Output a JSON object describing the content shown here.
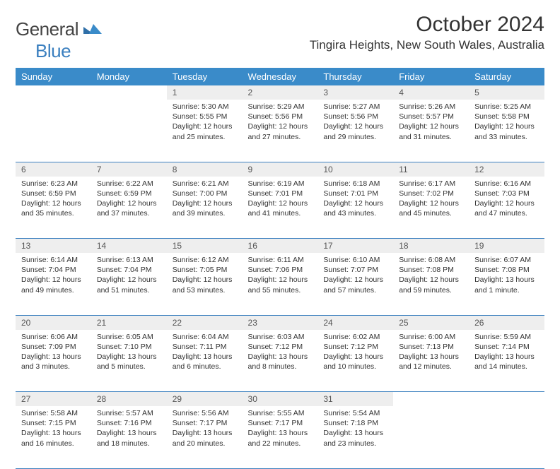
{
  "brand": {
    "part1": "General",
    "part2": "Blue"
  },
  "title": "October 2024",
  "location": "Tingira Heights, New South Wales, Australia",
  "colors": {
    "header_bg": "#3a8bc9",
    "header_fg": "#ffffff",
    "rule": "#3a7fbf",
    "daynum_bg": "#eeeeee"
  },
  "day_headers": [
    "Sunday",
    "Monday",
    "Tuesday",
    "Wednesday",
    "Thursday",
    "Friday",
    "Saturday"
  ],
  "weeks": [
    [
      {
        "n": "",
        "sr": "",
        "ss": "",
        "dl": ""
      },
      {
        "n": "",
        "sr": "",
        "ss": "",
        "dl": ""
      },
      {
        "n": "1",
        "sr": "Sunrise: 5:30 AM",
        "ss": "Sunset: 5:55 PM",
        "dl": "Daylight: 12 hours and 25 minutes."
      },
      {
        "n": "2",
        "sr": "Sunrise: 5:29 AM",
        "ss": "Sunset: 5:56 PM",
        "dl": "Daylight: 12 hours and 27 minutes."
      },
      {
        "n": "3",
        "sr": "Sunrise: 5:27 AM",
        "ss": "Sunset: 5:56 PM",
        "dl": "Daylight: 12 hours and 29 minutes."
      },
      {
        "n": "4",
        "sr": "Sunrise: 5:26 AM",
        "ss": "Sunset: 5:57 PM",
        "dl": "Daylight: 12 hours and 31 minutes."
      },
      {
        "n": "5",
        "sr": "Sunrise: 5:25 AM",
        "ss": "Sunset: 5:58 PM",
        "dl": "Daylight: 12 hours and 33 minutes."
      }
    ],
    [
      {
        "n": "6",
        "sr": "Sunrise: 6:23 AM",
        "ss": "Sunset: 6:59 PM",
        "dl": "Daylight: 12 hours and 35 minutes."
      },
      {
        "n": "7",
        "sr": "Sunrise: 6:22 AM",
        "ss": "Sunset: 6:59 PM",
        "dl": "Daylight: 12 hours and 37 minutes."
      },
      {
        "n": "8",
        "sr": "Sunrise: 6:21 AM",
        "ss": "Sunset: 7:00 PM",
        "dl": "Daylight: 12 hours and 39 minutes."
      },
      {
        "n": "9",
        "sr": "Sunrise: 6:19 AM",
        "ss": "Sunset: 7:01 PM",
        "dl": "Daylight: 12 hours and 41 minutes."
      },
      {
        "n": "10",
        "sr": "Sunrise: 6:18 AM",
        "ss": "Sunset: 7:01 PM",
        "dl": "Daylight: 12 hours and 43 minutes."
      },
      {
        "n": "11",
        "sr": "Sunrise: 6:17 AM",
        "ss": "Sunset: 7:02 PM",
        "dl": "Daylight: 12 hours and 45 minutes."
      },
      {
        "n": "12",
        "sr": "Sunrise: 6:16 AM",
        "ss": "Sunset: 7:03 PM",
        "dl": "Daylight: 12 hours and 47 minutes."
      }
    ],
    [
      {
        "n": "13",
        "sr": "Sunrise: 6:14 AM",
        "ss": "Sunset: 7:04 PM",
        "dl": "Daylight: 12 hours and 49 minutes."
      },
      {
        "n": "14",
        "sr": "Sunrise: 6:13 AM",
        "ss": "Sunset: 7:04 PM",
        "dl": "Daylight: 12 hours and 51 minutes."
      },
      {
        "n": "15",
        "sr": "Sunrise: 6:12 AM",
        "ss": "Sunset: 7:05 PM",
        "dl": "Daylight: 12 hours and 53 minutes."
      },
      {
        "n": "16",
        "sr": "Sunrise: 6:11 AM",
        "ss": "Sunset: 7:06 PM",
        "dl": "Daylight: 12 hours and 55 minutes."
      },
      {
        "n": "17",
        "sr": "Sunrise: 6:10 AM",
        "ss": "Sunset: 7:07 PM",
        "dl": "Daylight: 12 hours and 57 minutes."
      },
      {
        "n": "18",
        "sr": "Sunrise: 6:08 AM",
        "ss": "Sunset: 7:08 PM",
        "dl": "Daylight: 12 hours and 59 minutes."
      },
      {
        "n": "19",
        "sr": "Sunrise: 6:07 AM",
        "ss": "Sunset: 7:08 PM",
        "dl": "Daylight: 13 hours and 1 minute."
      }
    ],
    [
      {
        "n": "20",
        "sr": "Sunrise: 6:06 AM",
        "ss": "Sunset: 7:09 PM",
        "dl": "Daylight: 13 hours and 3 minutes."
      },
      {
        "n": "21",
        "sr": "Sunrise: 6:05 AM",
        "ss": "Sunset: 7:10 PM",
        "dl": "Daylight: 13 hours and 5 minutes."
      },
      {
        "n": "22",
        "sr": "Sunrise: 6:04 AM",
        "ss": "Sunset: 7:11 PM",
        "dl": "Daylight: 13 hours and 6 minutes."
      },
      {
        "n": "23",
        "sr": "Sunrise: 6:03 AM",
        "ss": "Sunset: 7:12 PM",
        "dl": "Daylight: 13 hours and 8 minutes."
      },
      {
        "n": "24",
        "sr": "Sunrise: 6:02 AM",
        "ss": "Sunset: 7:12 PM",
        "dl": "Daylight: 13 hours and 10 minutes."
      },
      {
        "n": "25",
        "sr": "Sunrise: 6:00 AM",
        "ss": "Sunset: 7:13 PM",
        "dl": "Daylight: 13 hours and 12 minutes."
      },
      {
        "n": "26",
        "sr": "Sunrise: 5:59 AM",
        "ss": "Sunset: 7:14 PM",
        "dl": "Daylight: 13 hours and 14 minutes."
      }
    ],
    [
      {
        "n": "27",
        "sr": "Sunrise: 5:58 AM",
        "ss": "Sunset: 7:15 PM",
        "dl": "Daylight: 13 hours and 16 minutes."
      },
      {
        "n": "28",
        "sr": "Sunrise: 5:57 AM",
        "ss": "Sunset: 7:16 PM",
        "dl": "Daylight: 13 hours and 18 minutes."
      },
      {
        "n": "29",
        "sr": "Sunrise: 5:56 AM",
        "ss": "Sunset: 7:17 PM",
        "dl": "Daylight: 13 hours and 20 minutes."
      },
      {
        "n": "30",
        "sr": "Sunrise: 5:55 AM",
        "ss": "Sunset: 7:17 PM",
        "dl": "Daylight: 13 hours and 22 minutes."
      },
      {
        "n": "31",
        "sr": "Sunrise: 5:54 AM",
        "ss": "Sunset: 7:18 PM",
        "dl": "Daylight: 13 hours and 23 minutes."
      },
      {
        "n": "",
        "sr": "",
        "ss": "",
        "dl": ""
      },
      {
        "n": "",
        "sr": "",
        "ss": "",
        "dl": ""
      }
    ]
  ]
}
